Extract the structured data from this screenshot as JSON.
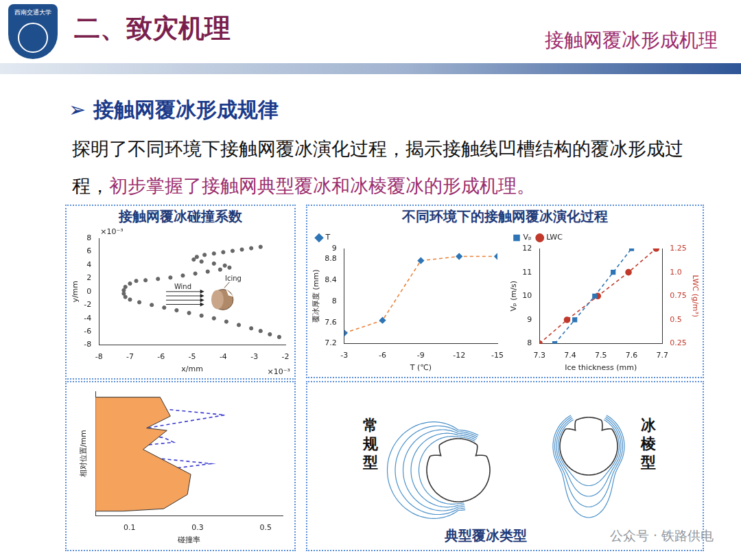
{
  "header": {
    "title": "二、致灾机理",
    "subtitle": "接触网覆冰形成机理",
    "logo": "西南交通大学"
  },
  "heading": {
    "bullet": "➢",
    "text": "接触网覆冰形成规律"
  },
  "body": {
    "text": "探明了不同环境下接触网覆冰演化过程，揭示接触线凹槽结构的覆冰形成过程，",
    "highlight": "初步掌握了接触网典型覆冰和冰棱覆冰的形成机理。"
  },
  "panels": {
    "left_title": "接触网覆冰碰撞系数",
    "right_title": "不同环境下的接触网覆冰演化过程"
  },
  "chart_data": [
    {
      "type": "scatter",
      "x_label": "x/mm",
      "y_label": "y/mm",
      "x_exponent": "×10⁻³",
      "y_exponent": "×10⁻³",
      "annotations": [
        "Wind",
        "Icing"
      ],
      "x": [
        -2.8,
        -3.1,
        -3.4,
        -3.7,
        -4.0,
        -4.3,
        -4.6,
        -4.85,
        -4.95,
        -4.7,
        -4.3,
        -3.95,
        -3.8,
        -4.1,
        -4.5,
        -4.9,
        -5.3,
        -5.7,
        -6.1,
        -6.5,
        -6.8,
        -7.0,
        -7.15,
        -7.2,
        -7.2,
        -7.15,
        -7.0,
        -6.7,
        -6.3,
        -5.9,
        -5.5,
        -5.1,
        -4.7,
        -4.3,
        -3.9,
        -3.5,
        -3.1,
        -2.8,
        -2.5,
        -2.2
      ],
      "values": [
        6.7,
        6.5,
        6.3,
        6.1,
        5.9,
        5.7,
        5.5,
        5.2,
        4.8,
        4.5,
        4.2,
        3.9,
        3.6,
        3.3,
        3.0,
        2.7,
        2.4,
        2.1,
        1.9,
        1.7,
        1.6,
        1.2,
        0.7,
        0.2,
        -0.3,
        -0.8,
        -1.2,
        -1.6,
        -2.0,
        -2.4,
        -2.8,
        -3.2,
        -3.6,
        -4.0,
        -4.5,
        -5.0,
        -5.5,
        -5.9,
        -6.4,
        -6.8
      ],
      "color": "#666666",
      "marker": "circle",
      "xlim": [
        -8,
        -2
      ],
      "xticks": [
        -8,
        -7,
        -6,
        -5,
        -4,
        -3,
        -2
      ],
      "ylim": [
        -8,
        8
      ],
      "yticks": [
        -8,
        -6,
        -4,
        -2,
        0,
        2,
        4,
        6,
        8
      ],
      "grid": false
    },
    {
      "type": "line",
      "x_label": "T (℃)",
      "y_label": "覆冰厚度 (mm)",
      "series": [
        {
          "name": "T",
          "color": "#e8823a",
          "marker": "diamond",
          "line_style": "dashed",
          "x": [
            -3,
            -6,
            -9,
            -12,
            -15
          ],
          "values": [
            7.4,
            7.64,
            8.77,
            8.85,
            8.85
          ]
        }
      ],
      "xlim": [
        -3,
        -15
      ],
      "xticks": [
        -3,
        -6,
        -9,
        -12,
        -15
      ],
      "ylim": [
        7.2,
        9
      ],
      "yticks": [
        7.2,
        7.6,
        8,
        8.4,
        8.8,
        9
      ],
      "legend": "top-left",
      "grid": false
    },
    {
      "type": "line",
      "x_label": "Ice thickness (mm)",
      "y_label": "Vₚ (m/s)",
      "y2_label": "LWC (g/m³)",
      "series": [
        {
          "name": "Vₚ",
          "color": "#2e75b6",
          "marker": "square",
          "line_style": "dashed",
          "x": [
            7.35,
            7.415,
            7.48,
            7.54,
            7.6
          ],
          "values": [
            8,
            9,
            10,
            11,
            12
          ]
        },
        {
          "name": "LWC",
          "color": "#c0392b",
          "marker": "circle",
          "line_style": "dashed",
          "axis": "y2",
          "x": [
            7.3,
            7.39,
            7.49,
            7.59,
            7.68
          ],
          "values": [
            0.25,
            0.5,
            0.75,
            1,
            1.25
          ]
        }
      ],
      "xlim": [
        7.3,
        7.7
      ],
      "xticks": [
        7.3,
        7.4,
        7.5,
        7.6,
        7.7
      ],
      "ylim": [
        8,
        12
      ],
      "yticks": [
        8,
        9,
        10,
        11,
        12
      ],
      "y2lim": [
        0.25,
        1.25
      ],
      "y2ticks": [
        0.25,
        0.5,
        0.75,
        {
          "value": 1,
          "label": "1.0"
        },
        1.25
      ],
      "legend": "top-left",
      "grid": false
    },
    {
      "type": "area",
      "x_label": "碰撞率",
      "y_label": "相对位置/mm",
      "series": [
        {
          "type": "area",
          "color": "#f5a25d",
          "x": [
            0,
            0.19,
            0.22,
            0.15,
            0.21,
            0.14,
            0.28,
            0.27,
            0.2,
            0.08,
            0
          ],
          "values": [
            10,
            10,
            8.4,
            7.4,
            7.2,
            5.6,
            3.5,
            1.8,
            0.6,
            0.4,
            0.4
          ]
        },
        {
          "type": "line",
          "color": "#3a3ad0",
          "line_style": "dashed",
          "x": [
            0.15,
            0.2,
            0.38,
            0.15,
            0.05,
            0.2,
            0.23,
            0.05,
            0.02,
            0.05,
            0.2,
            0.34,
            0.2,
            0.02,
            0
          ],
          "values": [
            9.6,
            9.0,
            8.5,
            7.4,
            7.0,
            6.6,
            6.2,
            5.7,
            5.3,
            5.0,
            4.8,
            4.4,
            3.9,
            3.3,
            3.0
          ]
        }
      ],
      "xlim": [
        0,
        0.55
      ],
      "xticks": [
        0.1,
        0.3,
        0.5
      ],
      "ylim": [
        0,
        10.5
      ],
      "tick_labels": "x",
      "grid": false
    }
  ],
  "diagram": {
    "title": "典型覆冰类型",
    "types": [
      "常规型",
      "冰棱型"
    ]
  },
  "watermark": "公众号 · 铁路供电"
}
